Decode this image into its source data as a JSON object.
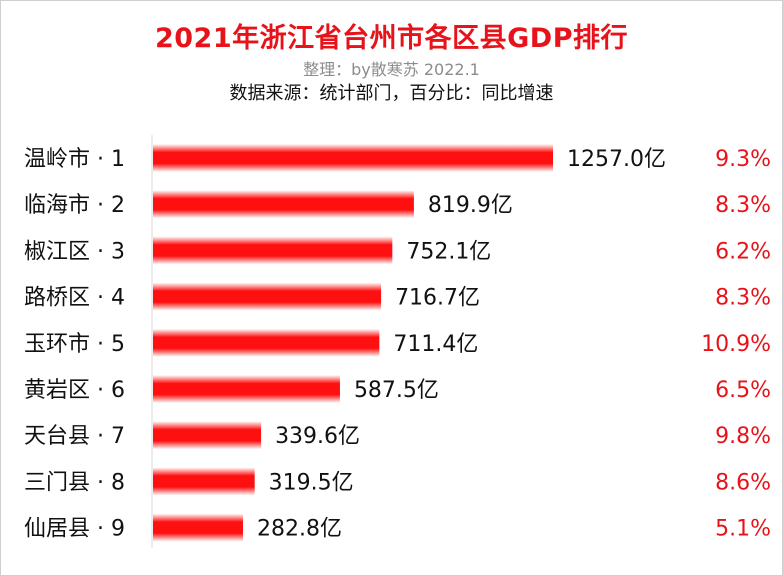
{
  "header": {
    "title": "2021年浙江省台州市各区县GDP排行",
    "subtitle": "整理：by散寒苏 2022.1",
    "source": "数据来源：统计部门，百分比：同比增速"
  },
  "colors": {
    "bar": "#ff1010",
    "bar_edge": "#ffffff",
    "title": "#e8131a",
    "percent": "#e8131a"
  },
  "chart_data": {
    "type": "bar",
    "orientation": "horizontal",
    "title": "2021年浙江省台州市各区县GDP排行",
    "categories": [
      "温岭市 · 1",
      "临海市 · 2",
      "椒江区 · 3",
      "路桥区 · 4",
      "玉环市 · 5",
      "黄岩区 · 6",
      "天台县 · 7",
      "三门县 · 8",
      "仙居县 · 9"
    ],
    "values": [
      1257.0,
      819.9,
      752.1,
      716.7,
      711.4,
      587.5,
      339.6,
      319.5,
      282.8
    ],
    "value_labels": [
      "1257.0亿",
      "819.9亿",
      "752.1亿",
      "716.7亿",
      "711.4亿",
      "587.5亿",
      "339.6亿",
      "319.5亿",
      "282.8亿"
    ],
    "growth_labels": [
      "9.3%",
      "8.3%",
      "6.2%",
      "8.3%",
      "10.9%",
      "6.5%",
      "9.8%",
      "8.6%",
      "5.1%"
    ],
    "xlim": [
      0,
      1257.0
    ],
    "grid": false,
    "legend": "none"
  }
}
